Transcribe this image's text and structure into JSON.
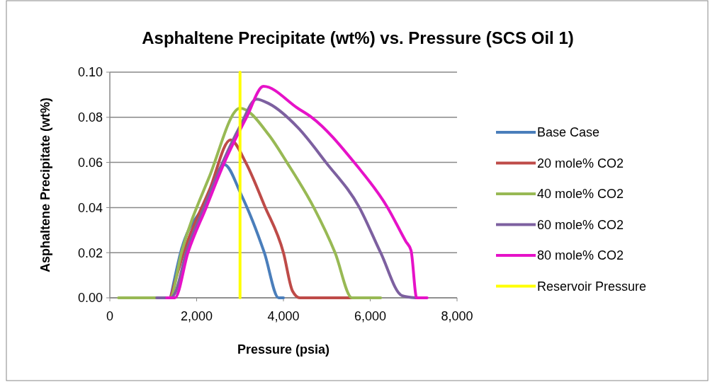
{
  "chart_data": {
    "type": "line",
    "title": "Asphaltene Precipitate (wt%) vs. Pressure (SCS Oil 1)",
    "xlabel": "Pressure (psia)",
    "ylabel": "Asphaltene Precipitate (wt%)",
    "xlim": [
      0,
      8000
    ],
    "xticks": [
      {
        "value": 0,
        "label": "0"
      },
      {
        "value": 2000,
        "label": "2,000"
      },
      {
        "value": 4000,
        "label": "4,000"
      },
      {
        "value": 6000,
        "label": "6,000"
      },
      {
        "value": 8000,
        "label": "8,000"
      }
    ],
    "ylim": [
      0,
      0.1
    ],
    "yticks": [
      {
        "value": 0,
        "label": "0.00"
      },
      {
        "value": 0.02,
        "label": "0.02"
      },
      {
        "value": 0.04,
        "label": "0.04"
      },
      {
        "value": 0.06,
        "label": "0.06"
      },
      {
        "value": 0.08,
        "label": "0.08"
      },
      {
        "value": 0.1,
        "label": "0.10"
      }
    ],
    "grid": "y",
    "legend": "right",
    "marker": "none",
    "line_style": "solid",
    "series": [
      {
        "name": "Base Case",
        "color": "#4a7ebb",
        "x": [
          1400,
          1630,
          2200,
          2640,
          3020,
          3560,
          3890,
          4000
        ],
        "values": [
          0,
          0.02,
          0.042,
          0.059,
          0.046,
          0.02,
          0,
          0
        ]
      },
      {
        "name": "20 mole% CO2",
        "color": "#be4b48",
        "x": [
          1400,
          1700,
          2300,
          2780,
          3130,
          3560,
          4000,
          4210,
          4380,
          5580
        ],
        "values": [
          0,
          0.02,
          0.048,
          0.07,
          0.06,
          0.041,
          0.02,
          0.003,
          0,
          0
        ]
      },
      {
        "name": "40 mole% CO2",
        "color": "#98b954",
        "x": [
          200,
          1390,
          1650,
          2300,
          3000,
          3670,
          4080,
          4700,
          5190,
          5580,
          6240
        ],
        "values": [
          0,
          0,
          0.02,
          0.054,
          0.084,
          0.072,
          0.06,
          0.04,
          0.02,
          0,
          0
        ]
      },
      {
        "name": "60 mole% CO2",
        "color": "#7d60a0",
        "x": [
          1080,
          1400,
          1500,
          1760,
          2170,
          2600,
          3000,
          3380,
          3670,
          4330,
          4980,
          5750,
          6240,
          6730,
          7050
        ],
        "values": [
          0,
          0,
          0.002,
          0.02,
          0.04,
          0.06,
          0.076,
          0.088,
          0.086,
          0.0755,
          0.06,
          0.04,
          0.02,
          0.001,
          0
        ]
      },
      {
        "name": "80 mole% CO2",
        "color": "#e612c8",
        "x": [
          1310,
          1500,
          1800,
          2220,
          2640,
          3150,
          3540,
          4330,
          4650,
          5630,
          6400,
          6820,
          6940,
          7070,
          7310
        ],
        "values": [
          0,
          0,
          0.02,
          0.04,
          0.06,
          0.08,
          0.0937,
          0.084,
          0.08,
          0.06,
          0.04,
          0.025,
          0.021,
          0,
          0
        ]
      },
      {
        "name": "Reservoir Pressure",
        "color": "#ffff00",
        "x": [
          3000,
          3000
        ],
        "values": [
          0,
          0.1
        ]
      }
    ]
  }
}
